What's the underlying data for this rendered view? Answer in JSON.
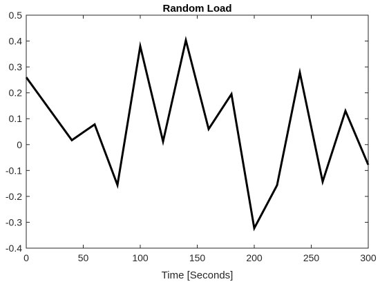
{
  "chart_data": {
    "type": "line",
    "title": "Random Load",
    "xlabel": "Time [Seconds]",
    "ylabel": "",
    "xlim": [
      0,
      300
    ],
    "ylim": [
      -0.4,
      0.5
    ],
    "x_ticks": [
      0,
      50,
      100,
      150,
      200,
      250,
      300
    ],
    "y_ticks": [
      -0.4,
      -0.3,
      -0.2,
      -0.1,
      0,
      0.1,
      0.2,
      0.3,
      0.4,
      0.5
    ],
    "x_tick_labels": [
      "0",
      "50",
      "100",
      "150",
      "200",
      "250",
      "300"
    ],
    "y_tick_labels": [
      "-0.4",
      "-0.3",
      "-0.2",
      "-0.1",
      "0",
      "0.1",
      "0.2",
      "0.3",
      "0.4",
      "0.5"
    ],
    "grid": false,
    "line_color": "#000000",
    "series": [
      {
        "x": [
          0,
          40,
          60,
          80,
          100,
          120,
          140,
          160,
          180,
          200,
          220,
          240,
          260,
          280,
          300
        ],
        "y": [
          0.26,
          0.017,
          0.078,
          -0.156,
          0.38,
          0.012,
          0.403,
          0.06,
          0.195,
          -0.323,
          -0.157,
          0.278,
          -0.143,
          0.13,
          -0.078
        ]
      }
    ]
  }
}
